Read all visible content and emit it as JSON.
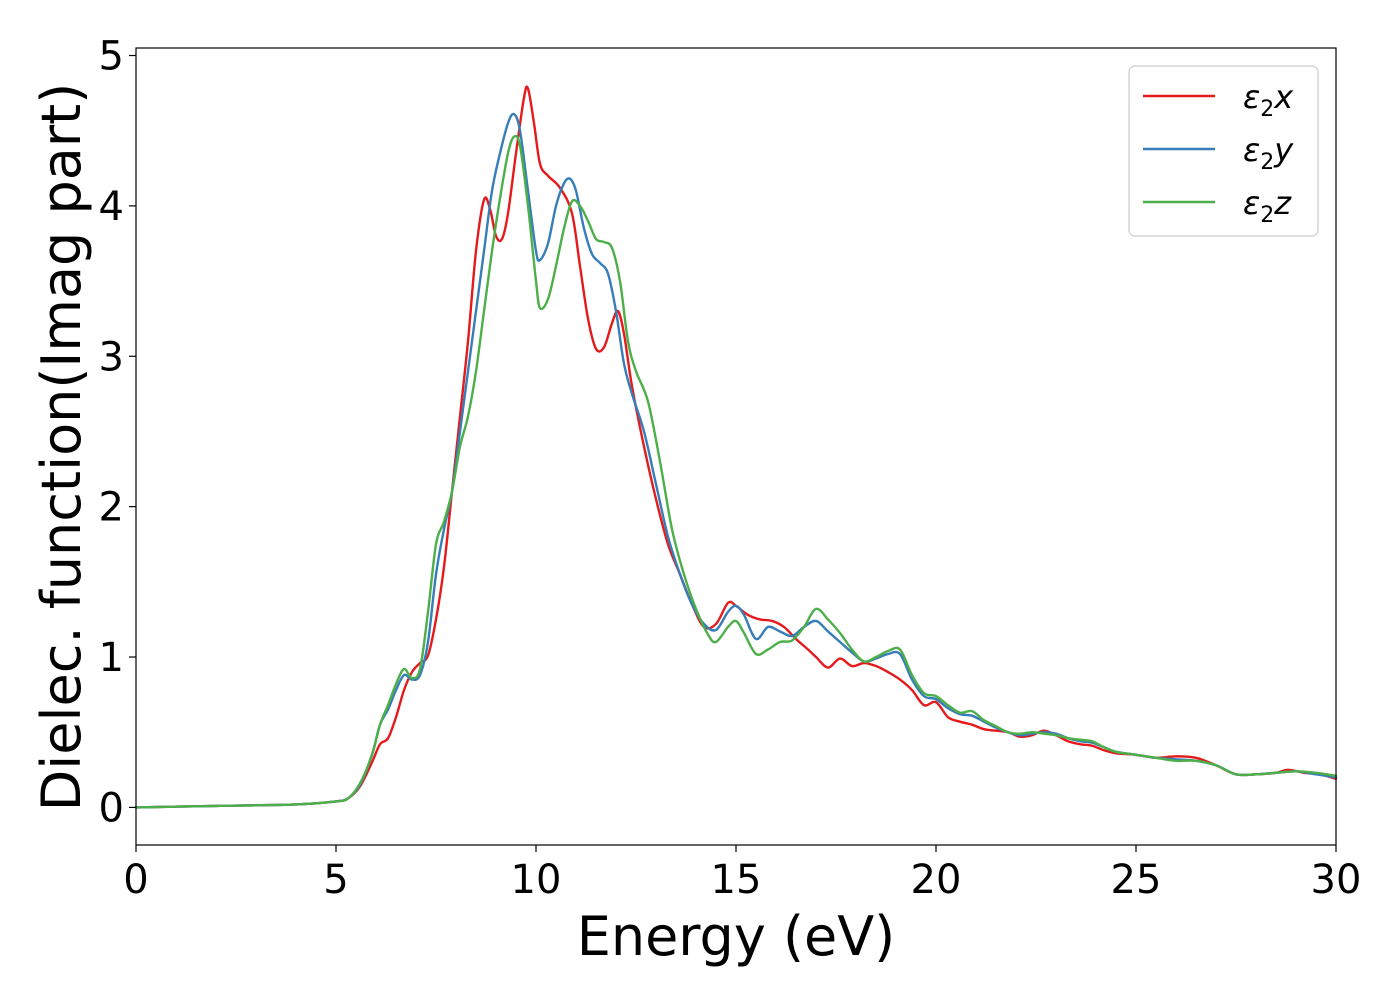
{
  "chart_data": {
    "type": "line",
    "xlabel": "Energy (eV)",
    "ylabel": "Dielec. function(Imag part)",
    "xlim": [
      0,
      30
    ],
    "ylim": [
      -0.25,
      5.05
    ],
    "xticks": [
      0,
      5,
      10,
      15,
      20,
      25,
      30
    ],
    "xtick_labels": [
      "0",
      "5",
      "10",
      "15",
      "20",
      "25",
      "30"
    ],
    "yticks": [
      0,
      1,
      2,
      3,
      4,
      5
    ],
    "ytick_labels": [
      "0",
      "1",
      "2",
      "3",
      "4",
      "5"
    ],
    "grid": false,
    "legend_position": "top-right",
    "series": [
      {
        "name": "ε2x",
        "legend_main": "ε",
        "legend_sub": "2",
        "legend_var": "x",
        "color": "#e41a1c",
        "points": [
          [
            0,
            0
          ],
          [
            2,
            0.01
          ],
          [
            4,
            0.02
          ],
          [
            5,
            0.04
          ],
          [
            5.3,
            0.06
          ],
          [
            5.6,
            0.14
          ],
          [
            5.9,
            0.3
          ],
          [
            6.1,
            0.42
          ],
          [
            6.3,
            0.46
          ],
          [
            6.5,
            0.6
          ],
          [
            6.7,
            0.78
          ],
          [
            6.9,
            0.9
          ],
          [
            7.1,
            0.96
          ],
          [
            7.3,
            1.01
          ],
          [
            7.5,
            1.25
          ],
          [
            7.7,
            1.6
          ],
          [
            7.9,
            2.1
          ],
          [
            8.1,
            2.6
          ],
          [
            8.3,
            3.1
          ],
          [
            8.5,
            3.7
          ],
          [
            8.7,
            4.04
          ],
          [
            8.85,
            3.98
          ],
          [
            9.0,
            3.8
          ],
          [
            9.15,
            3.78
          ],
          [
            9.3,
            3.95
          ],
          [
            9.5,
            4.35
          ],
          [
            9.7,
            4.72
          ],
          [
            9.8,
            4.78
          ],
          [
            9.95,
            4.55
          ],
          [
            10.1,
            4.28
          ],
          [
            10.3,
            4.2
          ],
          [
            10.6,
            4.12
          ],
          [
            10.9,
            3.95
          ],
          [
            11.1,
            3.6
          ],
          [
            11.3,
            3.25
          ],
          [
            11.5,
            3.05
          ],
          [
            11.7,
            3.06
          ],
          [
            11.9,
            3.22
          ],
          [
            12.05,
            3.3
          ],
          [
            12.2,
            3.15
          ],
          [
            12.4,
            2.8
          ],
          [
            12.7,
            2.4
          ],
          [
            13.0,
            2.05
          ],
          [
            13.3,
            1.75
          ],
          [
            13.6,
            1.55
          ],
          [
            13.9,
            1.35
          ],
          [
            14.2,
            1.2
          ],
          [
            14.5,
            1.22
          ],
          [
            14.8,
            1.36
          ],
          [
            15.0,
            1.34
          ],
          [
            15.3,
            1.28
          ],
          [
            15.6,
            1.25
          ],
          [
            15.9,
            1.24
          ],
          [
            16.2,
            1.2
          ],
          [
            16.5,
            1.12
          ],
          [
            16.8,
            1.05
          ],
          [
            17.0,
            1.0
          ],
          [
            17.3,
            0.93
          ],
          [
            17.6,
            0.99
          ],
          [
            17.9,
            0.94
          ],
          [
            18.2,
            0.96
          ],
          [
            18.5,
            0.94
          ],
          [
            18.8,
            0.9
          ],
          [
            19.1,
            0.85
          ],
          [
            19.4,
            0.78
          ],
          [
            19.7,
            0.68
          ],
          [
            20.0,
            0.7
          ],
          [
            20.3,
            0.6
          ],
          [
            20.6,
            0.57
          ],
          [
            20.9,
            0.55
          ],
          [
            21.2,
            0.52
          ],
          [
            21.5,
            0.51
          ],
          [
            21.8,
            0.5
          ],
          [
            22.1,
            0.47
          ],
          [
            22.4,
            0.48
          ],
          [
            22.7,
            0.51
          ],
          [
            23.0,
            0.48
          ],
          [
            23.3,
            0.44
          ],
          [
            23.6,
            0.42
          ],
          [
            23.9,
            0.41
          ],
          [
            24.2,
            0.38
          ],
          [
            24.5,
            0.36
          ],
          [
            25.0,
            0.35
          ],
          [
            25.5,
            0.33
          ],
          [
            26.0,
            0.34
          ],
          [
            26.5,
            0.33
          ],
          [
            27.0,
            0.28
          ],
          [
            27.5,
            0.22
          ],
          [
            28.0,
            0.22
          ],
          [
            28.5,
            0.23
          ],
          [
            28.8,
            0.25
          ],
          [
            29.2,
            0.23
          ],
          [
            29.6,
            0.22
          ],
          [
            30.0,
            0.19
          ]
        ]
      },
      {
        "name": "ε2y",
        "legend_main": "ε",
        "legend_sub": "2",
        "legend_var": "y",
        "color": "#377eb8",
        "points": [
          [
            0,
            0
          ],
          [
            2,
            0.01
          ],
          [
            4,
            0.02
          ],
          [
            5,
            0.04
          ],
          [
            5.3,
            0.06
          ],
          [
            5.6,
            0.15
          ],
          [
            5.9,
            0.35
          ],
          [
            6.1,
            0.55
          ],
          [
            6.3,
            0.65
          ],
          [
            6.5,
            0.78
          ],
          [
            6.7,
            0.88
          ],
          [
            6.9,
            0.85
          ],
          [
            7.1,
            0.88
          ],
          [
            7.3,
            1.1
          ],
          [
            7.5,
            1.55
          ],
          [
            7.7,
            1.85
          ],
          [
            7.9,
            2.1
          ],
          [
            8.1,
            2.5
          ],
          [
            8.3,
            2.9
          ],
          [
            8.5,
            3.3
          ],
          [
            8.7,
            3.7
          ],
          [
            8.9,
            4.1
          ],
          [
            9.1,
            4.35
          ],
          [
            9.3,
            4.55
          ],
          [
            9.45,
            4.61
          ],
          [
            9.6,
            4.5
          ],
          [
            9.8,
            4.1
          ],
          [
            10.0,
            3.7
          ],
          [
            10.1,
            3.64
          ],
          [
            10.3,
            3.75
          ],
          [
            10.5,
            4.0
          ],
          [
            10.7,
            4.15
          ],
          [
            10.85,
            4.18
          ],
          [
            11.0,
            4.1
          ],
          [
            11.2,
            3.85
          ],
          [
            11.4,
            3.68
          ],
          [
            11.6,
            3.62
          ],
          [
            11.8,
            3.55
          ],
          [
            12.0,
            3.3
          ],
          [
            12.2,
            2.95
          ],
          [
            12.4,
            2.75
          ],
          [
            12.7,
            2.5
          ],
          [
            13.0,
            2.15
          ],
          [
            13.3,
            1.8
          ],
          [
            13.6,
            1.55
          ],
          [
            13.9,
            1.35
          ],
          [
            14.2,
            1.22
          ],
          [
            14.5,
            1.18
          ],
          [
            14.8,
            1.3
          ],
          [
            15.0,
            1.34
          ],
          [
            15.2,
            1.28
          ],
          [
            15.5,
            1.12
          ],
          [
            15.8,
            1.2
          ],
          [
            16.1,
            1.17
          ],
          [
            16.4,
            1.14
          ],
          [
            16.7,
            1.2
          ],
          [
            17.0,
            1.24
          ],
          [
            17.3,
            1.17
          ],
          [
            17.6,
            1.1
          ],
          [
            17.9,
            1.03
          ],
          [
            18.2,
            0.97
          ],
          [
            18.5,
            0.99
          ],
          [
            18.8,
            1.02
          ],
          [
            19.1,
            1.02
          ],
          [
            19.4,
            0.85
          ],
          [
            19.7,
            0.74
          ],
          [
            20.0,
            0.72
          ],
          [
            20.3,
            0.66
          ],
          [
            20.6,
            0.62
          ],
          [
            20.9,
            0.61
          ],
          [
            21.2,
            0.57
          ],
          [
            21.5,
            0.53
          ],
          [
            21.8,
            0.5
          ],
          [
            22.1,
            0.48
          ],
          [
            22.4,
            0.49
          ],
          [
            22.7,
            0.5
          ],
          [
            23.0,
            0.49
          ],
          [
            23.3,
            0.46
          ],
          [
            23.6,
            0.44
          ],
          [
            23.9,
            0.43
          ],
          [
            24.2,
            0.4
          ],
          [
            24.5,
            0.37
          ],
          [
            25.0,
            0.35
          ],
          [
            25.5,
            0.33
          ],
          [
            26.0,
            0.32
          ],
          [
            26.5,
            0.31
          ],
          [
            27.0,
            0.28
          ],
          [
            27.5,
            0.22
          ],
          [
            28.0,
            0.22
          ],
          [
            28.5,
            0.23
          ],
          [
            29.0,
            0.24
          ],
          [
            29.5,
            0.22
          ],
          [
            30.0,
            0.2
          ]
        ]
      },
      {
        "name": "ε2z",
        "legend_main": "ε",
        "legend_sub": "2",
        "legend_var": "z",
        "color": "#4daf4a",
        "points": [
          [
            0,
            0
          ],
          [
            2,
            0.01
          ],
          [
            4,
            0.02
          ],
          [
            5,
            0.04
          ],
          [
            5.3,
            0.06
          ],
          [
            5.6,
            0.16
          ],
          [
            5.9,
            0.35
          ],
          [
            6.1,
            0.55
          ],
          [
            6.3,
            0.68
          ],
          [
            6.5,
            0.82
          ],
          [
            6.7,
            0.92
          ],
          [
            6.9,
            0.86
          ],
          [
            7.1,
            0.92
          ],
          [
            7.3,
            1.3
          ],
          [
            7.5,
            1.75
          ],
          [
            7.7,
            1.9
          ],
          [
            7.9,
            2.1
          ],
          [
            8.1,
            2.4
          ],
          [
            8.3,
            2.6
          ],
          [
            8.5,
            2.9
          ],
          [
            8.7,
            3.3
          ],
          [
            8.9,
            3.7
          ],
          [
            9.1,
            4.05
          ],
          [
            9.3,
            4.35
          ],
          [
            9.45,
            4.46
          ],
          [
            9.6,
            4.4
          ],
          [
            9.8,
            4.0
          ],
          [
            10.0,
            3.5
          ],
          [
            10.1,
            3.32
          ],
          [
            10.3,
            3.38
          ],
          [
            10.5,
            3.6
          ],
          [
            10.7,
            3.85
          ],
          [
            10.9,
            4.03
          ],
          [
            11.1,
            4.0
          ],
          [
            11.3,
            3.9
          ],
          [
            11.5,
            3.78
          ],
          [
            11.7,
            3.76
          ],
          [
            11.9,
            3.72
          ],
          [
            12.1,
            3.5
          ],
          [
            12.3,
            3.1
          ],
          [
            12.5,
            2.9
          ],
          [
            12.8,
            2.7
          ],
          [
            13.1,
            2.3
          ],
          [
            13.4,
            1.85
          ],
          [
            13.7,
            1.55
          ],
          [
            14.0,
            1.32
          ],
          [
            14.3,
            1.15
          ],
          [
            14.5,
            1.1
          ],
          [
            14.8,
            1.2
          ],
          [
            15.0,
            1.24
          ],
          [
            15.2,
            1.16
          ],
          [
            15.5,
            1.02
          ],
          [
            15.8,
            1.05
          ],
          [
            16.1,
            1.1
          ],
          [
            16.4,
            1.11
          ],
          [
            16.7,
            1.2
          ],
          [
            17.0,
            1.32
          ],
          [
            17.3,
            1.25
          ],
          [
            17.6,
            1.16
          ],
          [
            17.9,
            1.05
          ],
          [
            18.2,
            0.97
          ],
          [
            18.5,
            1.0
          ],
          [
            18.8,
            1.04
          ],
          [
            19.1,
            1.05
          ],
          [
            19.4,
            0.88
          ],
          [
            19.7,
            0.76
          ],
          [
            20.0,
            0.74
          ],
          [
            20.3,
            0.68
          ],
          [
            20.6,
            0.63
          ],
          [
            20.9,
            0.64
          ],
          [
            21.2,
            0.58
          ],
          [
            21.5,
            0.54
          ],
          [
            21.8,
            0.5
          ],
          [
            22.1,
            0.49
          ],
          [
            22.4,
            0.5
          ],
          [
            22.7,
            0.49
          ],
          [
            23.0,
            0.48
          ],
          [
            23.3,
            0.46
          ],
          [
            23.6,
            0.45
          ],
          [
            23.9,
            0.44
          ],
          [
            24.2,
            0.4
          ],
          [
            24.5,
            0.37
          ],
          [
            25.0,
            0.35
          ],
          [
            25.5,
            0.33
          ],
          [
            26.0,
            0.31
          ],
          [
            26.5,
            0.31
          ],
          [
            27.0,
            0.28
          ],
          [
            27.5,
            0.22
          ],
          [
            28.0,
            0.22
          ],
          [
            28.5,
            0.23
          ],
          [
            29.0,
            0.24
          ],
          [
            29.5,
            0.23
          ],
          [
            30.0,
            0.21
          ]
        ]
      }
    ]
  }
}
